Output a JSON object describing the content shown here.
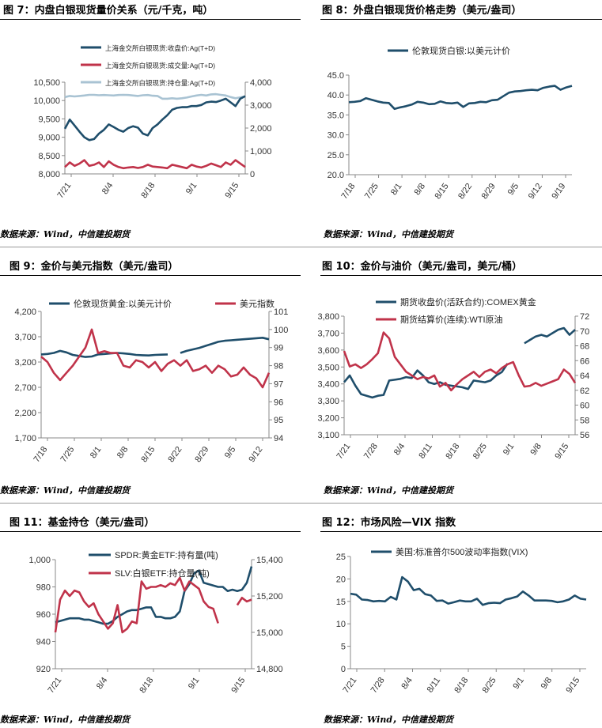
{
  "chart_data": [
    {
      "id": "c7",
      "type": "line",
      "title": "图 7：内盘白银现货量价关系（元/千克，吨）",
      "source": "数据来源：Wind，中信建投期货",
      "x_ticks": [
        "7/21",
        "8/4",
        "8/18",
        "9/1",
        "9/15"
      ],
      "y_left": {
        "min": 8000,
        "max": 10500,
        "ticks": [
          "8,000",
          "8,500",
          "9,000",
          "9,500",
          "10,000",
          "10,500"
        ]
      },
      "y_right": {
        "min": 0,
        "max": 4000,
        "ticks": [
          "0",
          "1,000",
          "2,000",
          "3,000",
          "4,000"
        ]
      },
      "legend": [
        {
          "name": "上海金交所白银现货:收盘价:Ag(T+D)",
          "color": "#1f4e6b"
        },
        {
          "name": "上海金交所白银现货:成交量:Ag(T+D)",
          "color": "#c0334a"
        },
        {
          "name": "上海金交所白银现货:持仓量:Ag(T+D)",
          "color": "#a9c3d3"
        }
      ],
      "series": [
        {
          "name": "上海金交所白银现货:持仓量:Ag(T+D)",
          "axis": "right",
          "color": "#a9c3d3",
          "values": [
            3350,
            3400,
            3380,
            3400,
            3420,
            3450,
            3450,
            3430,
            3440,
            3430,
            3420,
            3440,
            3450,
            3440,
            3420,
            3400,
            3430,
            3440,
            3410,
            3400,
            3280,
            3280,
            3300,
            3280,
            3300,
            3330,
            3380,
            3420,
            3450,
            3420,
            3470,
            3480,
            3450,
            3420,
            3350,
            3300,
            3340,
            3380
          ]
        },
        {
          "name": "上海金交所白银现货:成交量:Ag(T+D)",
          "axis": "right",
          "color": "#c0334a",
          "values": [
            300,
            500,
            350,
            450,
            600,
            350,
            400,
            500,
            300,
            550,
            400,
            300,
            250,
            280,
            300,
            260,
            300,
            400,
            320,
            300,
            280,
            250,
            400,
            350,
            300,
            250,
            400,
            320,
            280,
            350,
            450,
            380,
            300,
            500,
            400,
            600,
            450,
            300
          ]
        },
        {
          "name": "上海金交所白银现货:收盘价:Ag(T+D)",
          "axis": "left",
          "color": "#1f4e6b",
          "values": [
            9230,
            9480,
            9320,
            9150,
            9000,
            8920,
            8950,
            9100,
            9200,
            9350,
            9280,
            9200,
            9150,
            9250,
            9300,
            9260,
            9100,
            9050,
            9250,
            9350,
            9480,
            9600,
            9750,
            9800,
            9820,
            9820,
            9850,
            9850,
            9880,
            9950,
            9970,
            9960,
            10000,
            10050,
            9950,
            9850,
            10050,
            10120
          ]
        }
      ]
    },
    {
      "id": "c8",
      "type": "line",
      "title": "图 8：外盘白银现货价格走势（美元/盎司）",
      "source": "数据来源：Wind，中信建投期货",
      "x_ticks": [
        "7/18",
        "7/25",
        "8/1",
        "8/8",
        "8/15",
        "8/22",
        "8/29",
        "9/5",
        "9/12",
        "9/19"
      ],
      "y_left": {
        "min": 20,
        "max": 45,
        "ticks": [
          "20.0",
          "25.0",
          "30.0",
          "35.0",
          "40.0",
          "45.0"
        ]
      },
      "legend": [
        {
          "name": "伦敦现货白银:以美元计价",
          "color": "#1f4e6b"
        }
      ],
      "series": [
        {
          "name": "伦敦现货白银:以美元计价",
          "axis": "left",
          "color": "#1f4e6b",
          "values": [
            38.2,
            38.3,
            38.5,
            39.2,
            38.8,
            38.4,
            38.1,
            38.0,
            36.5,
            36.9,
            37.2,
            37.6,
            38.3,
            38.1,
            37.7,
            37.8,
            38.4,
            38.0,
            37.9,
            38.1,
            37.0,
            37.9,
            38.0,
            38.3,
            38.2,
            38.7,
            38.8,
            39.7,
            40.6,
            40.9,
            41.0,
            41.2,
            41.3,
            41.2,
            41.8,
            42.1,
            42.3,
            41.3,
            41.9,
            42.3
          ]
        }
      ]
    },
    {
      "id": "c9",
      "type": "line",
      "title": "图 9：金价与美元指数（美元/盎司）",
      "source": "数据来源：Wind，中信建投期货",
      "x_ticks": [
        "7/18",
        "7/25",
        "8/1",
        "8/8",
        "8/15",
        "8/22",
        "8/29",
        "9/5",
        "9/12"
      ],
      "y_left": {
        "min": 1700,
        "max": 4200,
        "ticks": [
          "1,700",
          "2,200",
          "2,700",
          "3,200",
          "3,700",
          "4,200"
        ]
      },
      "y_right": {
        "min": 94,
        "max": 101,
        "ticks": [
          "94",
          "95",
          "96",
          "97",
          "98",
          "99",
          "100",
          "101"
        ]
      },
      "legend": [
        {
          "name": "伦敦现货黄金:以美元计价",
          "color": "#1f4e6b"
        },
        {
          "name": "美元指数",
          "color": "#c0334a"
        }
      ],
      "series": [
        {
          "name": "伦敦现货黄金:以美元计价",
          "axis": "left",
          "color": "#1f4e6b",
          "values": [
            3350,
            3360,
            3380,
            3420,
            3390,
            3340,
            3320,
            3300,
            3310,
            3350,
            3360,
            3370,
            3380,
            3370,
            3360,
            3340,
            3335,
            3330,
            3340,
            3345,
            3350,
            null,
            3380,
            3420,
            3450,
            3480,
            3520,
            3560,
            3600,
            3620,
            3630,
            3640,
            3650,
            3660,
            3670,
            3680,
            3650
          ]
        },
        {
          "name": "美元指数",
          "axis": "right",
          "color": "#c0334a",
          "values": [
            98.5,
            98.2,
            97.6,
            97.2,
            97.6,
            98.0,
            98.5,
            99.0,
            100.0,
            98.7,
            98.8,
            98.7,
            98.7,
            98.0,
            97.9,
            98.3,
            98.2,
            97.9,
            98.2,
            97.7,
            98.1,
            98.3,
            98.0,
            98.3,
            97.7,
            97.8,
            98.0,
            97.6,
            98.0,
            97.8,
            97.4,
            97.5,
            97.9,
            97.5,
            97.3,
            96.8,
            97.6
          ]
        }
      ]
    },
    {
      "id": "c10",
      "type": "line",
      "title": "图 10：金价与油价（美元/盎司，美元/桶）",
      "source": "数据来源：Wind，中信建投期货",
      "x_ticks": [
        "7/21",
        "7/28",
        "8/4",
        "8/11",
        "8/18",
        "8/25",
        "9/1",
        "9/8",
        "9/15"
      ],
      "y_left": {
        "min": 3100,
        "max": 3800,
        "ticks": [
          "3,100",
          "3,200",
          "3,300",
          "3,400",
          "3,500",
          "3,600",
          "3,700",
          "3,800"
        ]
      },
      "y_right": {
        "min": 56,
        "max": 72,
        "ticks": [
          "56",
          "58",
          "60",
          "62",
          "64",
          "66",
          "68",
          "70",
          "72"
        ]
      },
      "legend": [
        {
          "name": "期货收盘价(活跃合约):COMEX黄金",
          "color": "#1f4e6b"
        },
        {
          "name": "期货结算价(连续):WTI原油",
          "color": "#c0334a"
        }
      ],
      "series": [
        {
          "name": "期货收盘价(活跃合约):COMEX黄金",
          "axis": "left",
          "color": "#1f4e6b",
          "values": [
            3410,
            3450,
            3390,
            3340,
            3330,
            3320,
            3330,
            3335,
            3420,
            3425,
            3430,
            3440,
            3435,
            3480,
            3450,
            3410,
            3400,
            3410,
            3395,
            3390,
            3385,
            3380,
            3370,
            3420,
            3415,
            3410,
            3420,
            3450,
            3470,
            3520,
            null,
            null,
            3640,
            3660,
            3680,
            3690,
            3680,
            3700,
            3720,
            3730,
            3690,
            3720
          ]
        },
        {
          "name": "期货结算价(连续):WTI原油",
          "axis": "right",
          "color": "#c0334a",
          "values": [
            67.3,
            65.2,
            65.5,
            65.0,
            65.5,
            66.2,
            67.0,
            69.8,
            69.0,
            66.5,
            65.5,
            64.5,
            64.0,
            63.5,
            63.8,
            63.6,
            64.0,
            62.5,
            63.0,
            62.0,
            62.8,
            63.5,
            64.0,
            64.5,
            63.8,
            64.5,
            64.8,
            64.3,
            65.0,
            65.5,
            65.8,
            64.0,
            62.5,
            62.6,
            63.0,
            62.6,
            62.9,
            63.2,
            63.5,
            64.8,
            64.2,
            63.0
          ]
        }
      ]
    },
    {
      "id": "c11",
      "type": "line",
      "title": "图 11：基金持仓（美元/盎司）",
      "source": "数据来源：Wind，中信建投期货",
      "x_ticks": [
        "7/21",
        "8/4",
        "8/18",
        "9/1",
        "9/15"
      ],
      "y_left": {
        "min": 920,
        "max": 1000,
        "ticks": [
          "920",
          "940",
          "960",
          "980",
          "1,000"
        ]
      },
      "y_right": {
        "min": 14800,
        "max": 15400,
        "ticks": [
          "14,800",
          "15,000",
          "15,200",
          "15,400"
        ]
      },
      "legend": [
        {
          "name": "SPDR:黄金ETF:持有量(吨)",
          "color": "#1f4e6b"
        },
        {
          "name": "SLV:白银ETF:持仓量(吨)",
          "color": "#c0334a"
        }
      ],
      "series": [
        {
          "name": "SPDR:黄金ETF:持有量(吨)",
          "axis": "left",
          "color": "#1f4e6b",
          "values": [
            954,
            955,
            956,
            957,
            957,
            957,
            956,
            956,
            955,
            954,
            953,
            953,
            955,
            958,
            960,
            962,
            963,
            963,
            964,
            965,
            965,
            958,
            958,
            957,
            957,
            958,
            962,
            977,
            982,
            990,
            992,
            983,
            982,
            981,
            980,
            980,
            977,
            978,
            977,
            978,
            983,
            995
          ]
        },
        {
          "name": "SLV:白银ETF:持仓量(吨)",
          "axis": "right",
          "color": "#c0334a",
          "values": [
            15000,
            15180,
            15230,
            15200,
            15230,
            15220,
            15170,
            15140,
            15160,
            15100,
            15060,
            15020,
            15050,
            15150,
            15000,
            15020,
            15060,
            15050,
            15280,
            15240,
            15250,
            15250,
            15260,
            15250,
            15270,
            15260,
            15300,
            15230,
            15280,
            15260,
            15240,
            15170,
            15140,
            15130,
            15050,
            null,
            null,
            null,
            15150,
            15190,
            15170,
            15180
          ]
        }
      ]
    },
    {
      "id": "c12",
      "type": "line",
      "title": "图 12：市场风险—VIX 指数",
      "source": "数据来源：Wind，中信建投期货",
      "x_ticks": [
        "7/21",
        "7/28",
        "8/4",
        "8/11",
        "8/18",
        "8/25",
        "9/1",
        "9/8",
        "9/15"
      ],
      "y_left": {
        "min": 0,
        "max": 25,
        "ticks": [
          "0",
          "5",
          "10",
          "15",
          "20",
          "25"
        ]
      },
      "legend": [
        {
          "name": "美国:标准普尔500波动率指数(VIX)",
          "color": "#1f4e6b"
        }
      ],
      "series": [
        {
          "name": "美国:标准普尔500波动率指数(VIX)",
          "axis": "left",
          "color": "#1f4e6b",
          "values": [
            16.7,
            16.5,
            15.4,
            15.3,
            15.0,
            15.1,
            15.0,
            16.0,
            15.4,
            20.4,
            19.4,
            17.5,
            17.8,
            16.6,
            16.3,
            15.1,
            15.2,
            14.5,
            14.8,
            15.2,
            15.0,
            15.0,
            15.6,
            14.2,
            14.6,
            14.7,
            14.6,
            15.4,
            15.7,
            16.1,
            17.2,
            16.3,
            15.2,
            15.2,
            15.2,
            15.1,
            14.8,
            15.0,
            15.4,
            16.3,
            15.6,
            15.4
          ]
        }
      ]
    }
  ]
}
